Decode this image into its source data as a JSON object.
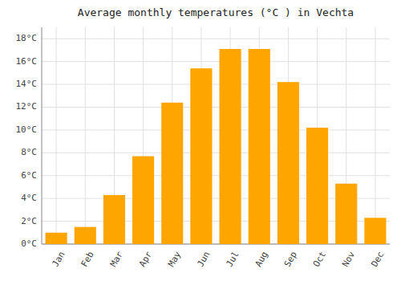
{
  "chart_data": {
    "type": "bar",
    "title": "Average monthly temperatures (°C ) in Vechta",
    "categories": [
      "Jan",
      "Feb",
      "Mar",
      "Apr",
      "May",
      "Jun",
      "Jul",
      "Aug",
      "Sep",
      "Oct",
      "Nov",
      "Dec"
    ],
    "values": [
      1.0,
      1.5,
      4.3,
      7.7,
      12.4,
      15.4,
      17.1,
      17.1,
      14.2,
      10.2,
      5.3,
      2.3
    ],
    "color": "#FFA500",
    "ylim": [
      0,
      19
    ],
    "yticks": [
      {
        "value": 0,
        "label": "0°C"
      },
      {
        "value": 2,
        "label": "2°C"
      },
      {
        "value": 4,
        "label": "4°C"
      },
      {
        "value": 6,
        "label": "6°C"
      },
      {
        "value": 8,
        "label": "8°C"
      },
      {
        "value": 10,
        "label": "10°C"
      },
      {
        "value": 12,
        "label": "12°C"
      },
      {
        "value": 14,
        "label": "14°C"
      },
      {
        "value": 16,
        "label": "16°C"
      },
      {
        "value": 18,
        "label": "18°C"
      }
    ],
    "grid": true
  }
}
